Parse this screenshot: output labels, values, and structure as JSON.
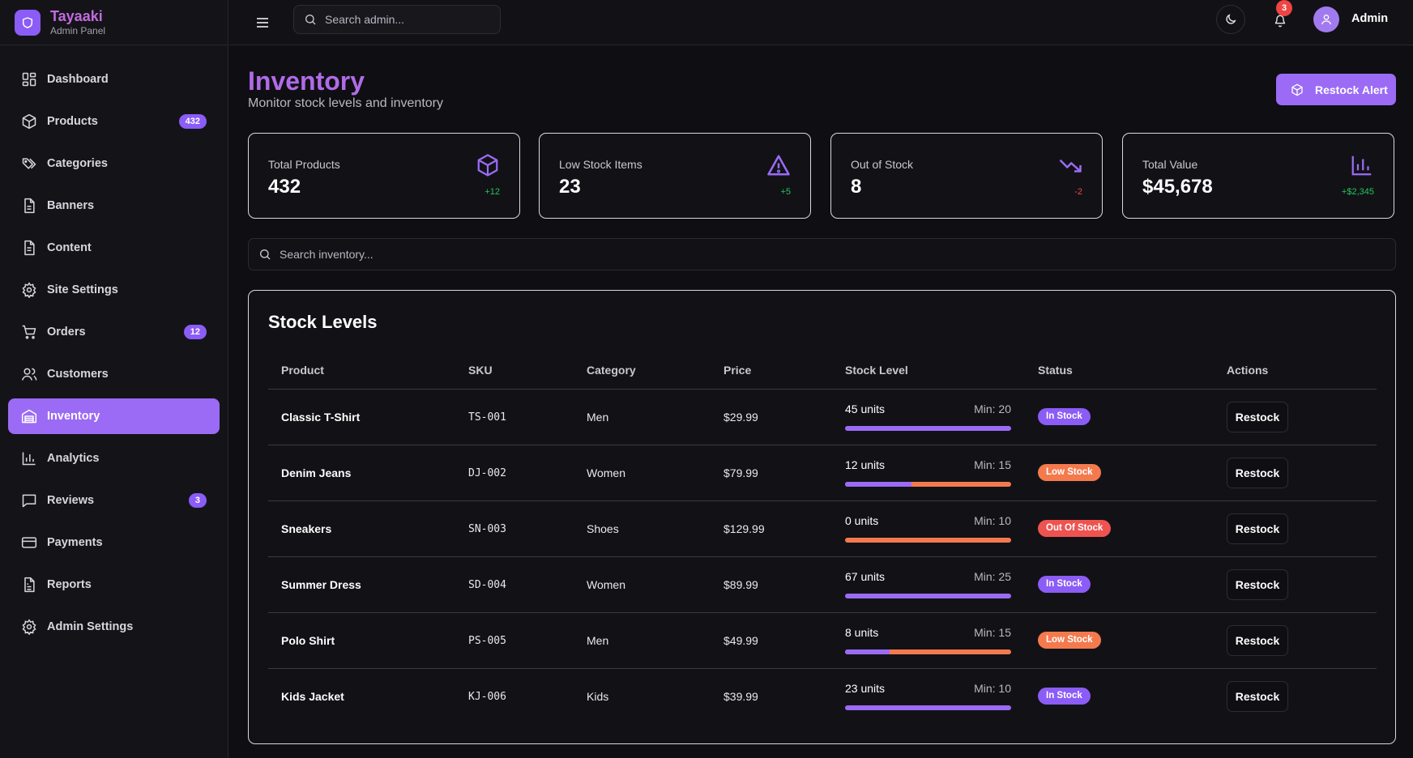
{
  "brand": {
    "name": "Tayaaki",
    "subtitle": "Admin Panel"
  },
  "sidebar": {
    "items": [
      {
        "label": "Dashboard",
        "icon": "dashboard-icon"
      },
      {
        "label": "Products",
        "icon": "package-icon",
        "badge": "432"
      },
      {
        "label": "Categories",
        "icon": "tags-icon"
      },
      {
        "label": "Banners",
        "icon": "file-icon"
      },
      {
        "label": "Content",
        "icon": "file-text-icon"
      },
      {
        "label": "Site Settings",
        "icon": "gear-icon"
      },
      {
        "label": "Orders",
        "icon": "cart-icon",
        "badge": "12"
      },
      {
        "label": "Customers",
        "icon": "users-icon"
      },
      {
        "label": "Inventory",
        "icon": "warehouse-icon",
        "active": true
      },
      {
        "label": "Analytics",
        "icon": "bar-chart-icon"
      },
      {
        "label": "Reviews",
        "icon": "message-icon",
        "badge": "3"
      },
      {
        "label": "Payments",
        "icon": "credit-card-icon"
      },
      {
        "label": "Reports",
        "icon": "report-icon"
      },
      {
        "label": "Admin Settings",
        "icon": "gear-icon"
      }
    ]
  },
  "header": {
    "search_placeholder": "Search admin...",
    "notification_count": "3",
    "user_name": "Admin"
  },
  "page": {
    "title": "Inventory",
    "subtitle": "Monitor stock levels and inventory",
    "restock_alert_label": "Restock Alert"
  },
  "stats": [
    {
      "label": "Total Products",
      "value": "432",
      "delta": "+12",
      "trend": "up",
      "icon": "package-icon"
    },
    {
      "label": "Low Stock Items",
      "value": "23",
      "delta": "+5",
      "trend": "up",
      "icon": "warning-icon"
    },
    {
      "label": "Out of Stock",
      "value": "8",
      "delta": "-2",
      "trend": "down",
      "icon": "trending-down-icon"
    },
    {
      "label": "Total Value",
      "value": "$45,678",
      "delta": "+$2,345",
      "trend": "up",
      "icon": "bar-chart-icon"
    }
  ],
  "inventory_search_placeholder": "Search inventory...",
  "table": {
    "title": "Stock Levels",
    "columns": [
      "Product",
      "SKU",
      "Category",
      "Price",
      "Stock Level",
      "Status",
      "Actions"
    ],
    "rows": [
      {
        "product": "Classic T-Shirt",
        "sku": "TS-001",
        "category": "Men",
        "price": "$29.99",
        "units": "45 units",
        "min": "Min: 20",
        "level": 1.0,
        "status": "In Stock",
        "status_type": "in"
      },
      {
        "product": "Denim Jeans",
        "sku": "DJ-002",
        "category": "Women",
        "price": "$79.99",
        "units": "12 units",
        "min": "Min: 15",
        "level": 0.4,
        "status": "Low Stock",
        "status_type": "low"
      },
      {
        "product": "Sneakers",
        "sku": "SN-003",
        "category": "Shoes",
        "price": "$129.99",
        "units": "0 units",
        "min": "Min: 10",
        "level": 0.0,
        "status": "Out Of Stock",
        "status_type": "out"
      },
      {
        "product": "Summer Dress",
        "sku": "SD-004",
        "category": "Women",
        "price": "$89.99",
        "units": "67 units",
        "min": "Min: 25",
        "level": 1.0,
        "status": "In Stock",
        "status_type": "in"
      },
      {
        "product": "Polo Shirt",
        "sku": "PS-005",
        "category": "Men",
        "price": "$49.99",
        "units": "8 units",
        "min": "Min: 15",
        "level": 0.27,
        "status": "Low Stock",
        "status_type": "low"
      },
      {
        "product": "Kids Jacket",
        "sku": "KJ-006",
        "category": "Kids",
        "price": "$39.99",
        "units": "23 units",
        "min": "Min: 10",
        "level": 1.0,
        "status": "In Stock",
        "status_type": "in"
      }
    ],
    "action_label": "Restock"
  },
  "colors": {
    "accent": "#9b6bf5",
    "brand_text": "#c26be0",
    "low": "#f47a4e",
    "out": "#ef5350",
    "up": "#22c55e",
    "down": "#ef4444"
  }
}
